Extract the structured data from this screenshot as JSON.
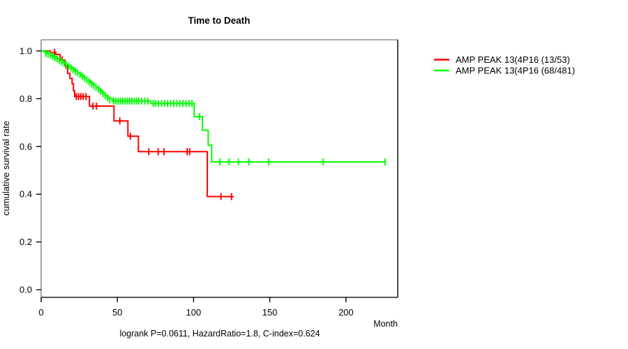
{
  "title": "Time to Death",
  "axes": {
    "x_label": "Month",
    "y_label": "cumulative survival rate",
    "x_ticks": [
      {
        "label": "0",
        "value": 0
      },
      {
        "label": "50",
        "value": 50
      },
      {
        "label": "100",
        "value": 100
      },
      {
        "label": "150",
        "value": 150
      },
      {
        "label": "200",
        "value": 200
      }
    ],
    "y_ticks": [
      {
        "label": "0.0",
        "value": 0.0
      },
      {
        "label": "0.2",
        "value": 0.2
      },
      {
        "label": "0.4",
        "value": 0.4
      },
      {
        "label": "0.6",
        "value": 0.6
      },
      {
        "label": "0.8",
        "value": 0.8
      },
      {
        "label": "1.0",
        "value": 1.0
      }
    ]
  },
  "annotation": "logrank P=0.0611, HazardRatio=1.8, C-index=0.624",
  "legend": [
    {
      "label": "AMP PEAK 13(4P16 (13/53)",
      "color": "#ff0000"
    },
    {
      "label": "AMP PEAK 13(4P16 (68/481)",
      "color": "#00ff00"
    }
  ],
  "colors": {
    "red_series": "#ff0000",
    "green_series": "#00ff00",
    "box_light": "#8f8f8f",
    "box_dark": "#1a1a1a",
    "tick": "#000000"
  },
  "chart_data": {
    "type": "line",
    "subtype": "kaplan-meier-step",
    "title": "Time to Death",
    "xlabel": "Month",
    "ylabel": "cumulative survival rate",
    "xlim": [
      0,
      234
    ],
    "ylim": [
      0.0,
      1.0
    ],
    "grid": false,
    "legend_position": "right-outside",
    "series": [
      {
        "name": "AMP PEAK 13(4P16 (13/53)",
        "color": "#ff0000",
        "steps": [
          [
            0,
            1.0
          ],
          [
            6,
            0.994
          ],
          [
            9.6,
            0.985
          ],
          [
            12.5,
            0.962
          ],
          [
            15.5,
            0.94
          ],
          [
            17.3,
            0.906
          ],
          [
            18.8,
            0.885
          ],
          [
            20.3,
            0.863
          ],
          [
            21.2,
            0.833
          ],
          [
            22,
            0.809
          ],
          [
            31.7,
            0.769
          ],
          [
            47.8,
            0.707
          ],
          [
            56.9,
            0.643
          ],
          [
            63.8,
            0.578
          ],
          [
            109,
            0.39
          ],
          [
            126.4,
            0.39
          ]
        ],
        "censors": [
          [
            8.8,
            0.994
          ],
          [
            13.8,
            0.962
          ],
          [
            16.2,
            0.94
          ],
          [
            23,
            0.809
          ],
          [
            24.5,
            0.809
          ],
          [
            26,
            0.809
          ],
          [
            27.5,
            0.809
          ],
          [
            29.4,
            0.809
          ],
          [
            34,
            0.769
          ],
          [
            36.3,
            0.769
          ],
          [
            51.6,
            0.707
          ],
          [
            58.5,
            0.643
          ],
          [
            70.6,
            0.578
          ],
          [
            76.8,
            0.578
          ],
          [
            80.6,
            0.578
          ],
          [
            95.8,
            0.578
          ],
          [
            97.4,
            0.578
          ],
          [
            118,
            0.39
          ],
          [
            124.9,
            0.39
          ]
        ]
      },
      {
        "name": "AMP PEAK 13(4P16 (68/481)",
        "color": "#00ff00",
        "steps": [
          [
            0,
            1.0
          ],
          [
            2,
            0.995
          ],
          [
            4,
            0.989
          ],
          [
            6,
            0.982
          ],
          [
            8,
            0.975
          ],
          [
            10,
            0.968
          ],
          [
            12,
            0.96
          ],
          [
            14,
            0.952
          ],
          [
            16,
            0.944
          ],
          [
            18,
            0.935
          ],
          [
            20,
            0.926
          ],
          [
            22,
            0.917
          ],
          [
            24,
            0.908
          ],
          [
            26,
            0.898
          ],
          [
            28,
            0.888
          ],
          [
            30,
            0.878
          ],
          [
            32,
            0.868
          ],
          [
            34,
            0.858
          ],
          [
            36,
            0.847
          ],
          [
            38,
            0.836
          ],
          [
            40,
            0.824
          ],
          [
            42,
            0.812
          ],
          [
            44,
            0.801
          ],
          [
            46.5,
            0.79
          ],
          [
            72,
            0.78
          ],
          [
            100.4,
            0.725
          ],
          [
            105.8,
            0.668
          ],
          [
            109.6,
            0.605
          ],
          [
            111.9,
            0.535
          ],
          [
            226.2,
            0.535
          ]
        ],
        "censors": [
          [
            3,
            0.99
          ],
          [
            4.5,
            0.987
          ],
          [
            6,
            0.982
          ],
          [
            7.5,
            0.978
          ],
          [
            9,
            0.971
          ],
          [
            10.5,
            0.966
          ],
          [
            12,
            0.96
          ],
          [
            13.5,
            0.954
          ],
          [
            15,
            0.948
          ],
          [
            16.5,
            0.942
          ],
          [
            18,
            0.935
          ],
          [
            19.5,
            0.928
          ],
          [
            21,
            0.921
          ],
          [
            22.5,
            0.914
          ],
          [
            24,
            0.908
          ],
          [
            25.5,
            0.9
          ],
          [
            27,
            0.893
          ],
          [
            28.5,
            0.886
          ],
          [
            30,
            0.878
          ],
          [
            31.5,
            0.87
          ],
          [
            33,
            0.862
          ],
          [
            34.5,
            0.855
          ],
          [
            36,
            0.847
          ],
          [
            37.5,
            0.839
          ],
          [
            39,
            0.83
          ],
          [
            40.5,
            0.821
          ],
          [
            42,
            0.812
          ],
          [
            43.5,
            0.804
          ],
          [
            45,
            0.795
          ],
          [
            47.5,
            0.79
          ],
          [
            49,
            0.79
          ],
          [
            50.5,
            0.79
          ],
          [
            52,
            0.79
          ],
          [
            53.5,
            0.79
          ],
          [
            55,
            0.79
          ],
          [
            56.5,
            0.79
          ],
          [
            58,
            0.79
          ],
          [
            59.5,
            0.79
          ],
          [
            61,
            0.79
          ],
          [
            62.5,
            0.79
          ],
          [
            64,
            0.79
          ],
          [
            66,
            0.79
          ],
          [
            68,
            0.79
          ],
          [
            70,
            0.79
          ],
          [
            73.5,
            0.78
          ],
          [
            75,
            0.78
          ],
          [
            77,
            0.78
          ],
          [
            79,
            0.78
          ],
          [
            81,
            0.78
          ],
          [
            83,
            0.78
          ],
          [
            85,
            0.78
          ],
          [
            87,
            0.78
          ],
          [
            89,
            0.78
          ],
          [
            91,
            0.78
          ],
          [
            93,
            0.78
          ],
          [
            95,
            0.78
          ],
          [
            97,
            0.78
          ],
          [
            99,
            0.78
          ],
          [
            104,
            0.725
          ],
          [
            117.2,
            0.535
          ],
          [
            123.3,
            0.535
          ],
          [
            129.4,
            0.535
          ],
          [
            136.3,
            0.535
          ],
          [
            149.3,
            0.535
          ],
          [
            185.1,
            0.535
          ],
          [
            225.6,
            0.535
          ]
        ]
      }
    ]
  }
}
